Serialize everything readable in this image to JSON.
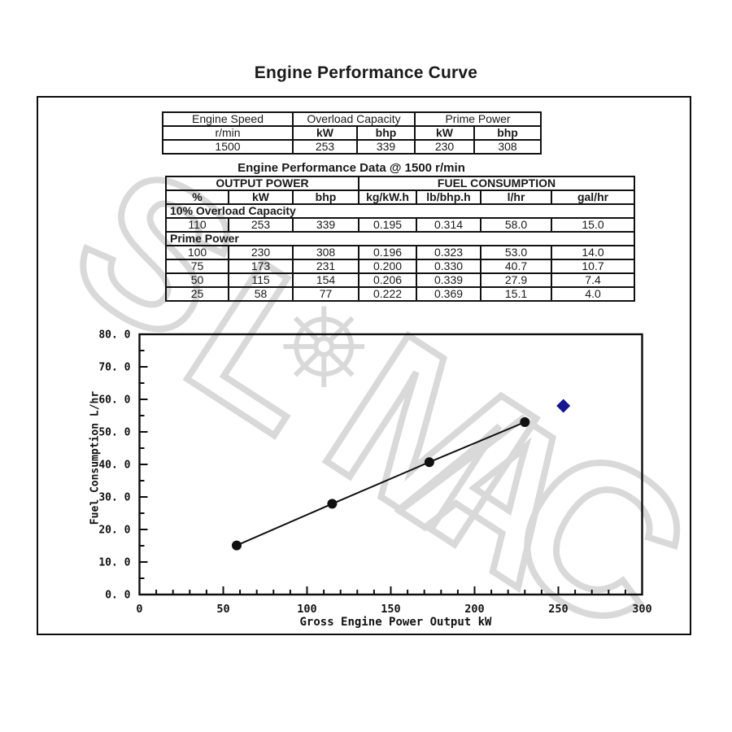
{
  "page": {
    "title": "Engine Performance Curve"
  },
  "ratings_table": {
    "col_headers": [
      "Engine Speed",
      "Overload Capacity",
      "Prime Power"
    ],
    "unit_row": [
      "r/min",
      "kW",
      "bhp",
      "kW",
      "bhp"
    ],
    "value_row": [
      "1500",
      "253",
      "339",
      "230",
      "308"
    ]
  },
  "performance_table": {
    "caption": "Engine Performance Data @ 1500 r/min",
    "group_headers": [
      "OUTPUT POWER",
      "FUEL CONSUMPTION"
    ],
    "col_headers": [
      "%",
      "kW",
      "bhp",
      "kg/kW.h",
      "lb/bhp.h",
      "l/hr",
      "gal/hr"
    ],
    "sections": [
      {
        "label": "10% Overload Capacity",
        "rows": [
          [
            "110",
            "253",
            "339",
            "0.195",
            "0.314",
            "58.0",
            "15.0"
          ]
        ]
      },
      {
        "label": "Prime Power",
        "rows": [
          [
            "100",
            "230",
            "308",
            "0.196",
            "0.323",
            "53.0",
            "14.0"
          ],
          [
            "75",
            "173",
            "231",
            "0.200",
            "0.330",
            "40.7",
            "10.7"
          ],
          [
            "50",
            "115",
            "154",
            "0.206",
            "0.339",
            "27.9",
            "7.4"
          ],
          [
            "25",
            "58",
            "77",
            "0.222",
            "0.369",
            "15.1",
            "4.0"
          ]
        ]
      }
    ]
  },
  "chart_data": {
    "type": "line",
    "title": "",
    "xlabel": "Gross Engine Power Output  kW",
    "ylabel": "Fuel Consumption  L/hr",
    "xlim": [
      0,
      300
    ],
    "ylim": [
      0,
      80
    ],
    "x_major_step": 50,
    "x_minor_step": 10,
    "y_major_step": 10,
    "y_minor_step": 5,
    "x_tick_labels": [
      "0",
      "50",
      "100",
      "150",
      "200",
      "250",
      "300"
    ],
    "y_tick_labels": [
      "0. 0",
      "10. 0",
      "20. 0",
      "30. 0",
      "40. 0",
      "50. 0",
      "60. 0",
      "70. 0",
      "80. 0"
    ],
    "grid": false,
    "legend": "none",
    "series": [
      {
        "name": "Prime Power fuel consumption",
        "marker": "circle",
        "line": true,
        "color": "#111111",
        "points": [
          [
            58,
            15.1
          ],
          [
            115,
            27.9
          ],
          [
            173,
            40.7
          ],
          [
            230,
            53.0
          ]
        ]
      },
      {
        "name": "110% Overload point",
        "marker": "diamond",
        "line": false,
        "color": "#15158f",
        "points": [
          [
            253,
            58.0
          ]
        ]
      }
    ]
  },
  "watermark": {
    "letters": [
      "S",
      "L",
      "M",
      "A",
      "C"
    ],
    "color": "#d9d9d9"
  }
}
